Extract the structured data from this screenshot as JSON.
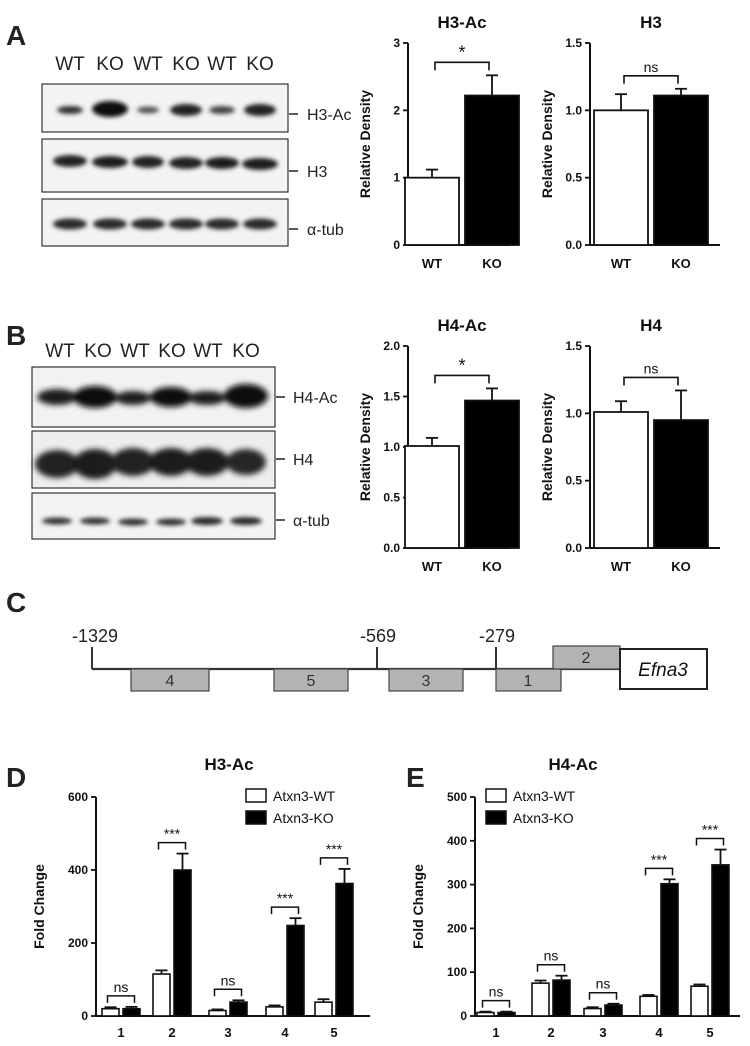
{
  "panel_letters": {
    "A": "A",
    "B": "B",
    "C": "C",
    "D": "D",
    "E": "E"
  },
  "blots": {
    "A": {
      "lanes": [
        "WT",
        "KO",
        "WT",
        "KO",
        "WT",
        "KO"
      ],
      "labels": [
        "H3-Ac",
        "H3",
        "α-tub"
      ]
    },
    "B": {
      "lanes": [
        "WT",
        "KO",
        "WT",
        "KO",
        "WT",
        "KO"
      ],
      "labels": [
        "H4-Ac",
        "H4",
        "α-tub"
      ]
    }
  },
  "promoter": {
    "positions": [
      "-1329",
      "-569",
      "-279"
    ],
    "regions": [
      "4",
      "5",
      "3",
      "1",
      "2"
    ],
    "gene": "Efna3"
  },
  "chart_data": [
    {
      "id": "A1",
      "type": "bar",
      "title": "H3-Ac",
      "ylabel": "Relative Density",
      "xlabel": "",
      "categories": [
        "WT",
        "KO"
      ],
      "values": [
        1.0,
        2.22
      ],
      "errors": [
        0.12,
        0.3
      ],
      "ylim": [
        0,
        3
      ],
      "yticks": [
        "0",
        "1",
        "2",
        "3"
      ],
      "colors": [
        "#ffffff",
        "#000000"
      ],
      "significance": "*"
    },
    {
      "id": "A2",
      "type": "bar",
      "title": "H3",
      "ylabel": "Relative Density",
      "xlabel": "",
      "categories": [
        "WT",
        "KO"
      ],
      "values": [
        1.0,
        1.11
      ],
      "errors": [
        0.12,
        0.05
      ],
      "ylim": [
        0,
        1.5
      ],
      "yticks": [
        "0.0",
        "0.5",
        "1.0",
        "1.5"
      ],
      "colors": [
        "#ffffff",
        "#000000"
      ],
      "significance": "ns"
    },
    {
      "id": "B1",
      "type": "bar",
      "title": "H4-Ac",
      "ylabel": "Relative Density",
      "xlabel": "",
      "categories": [
        "WT",
        "KO"
      ],
      "values": [
        1.01,
        1.46
      ],
      "errors": [
        0.08,
        0.12
      ],
      "ylim": [
        0,
        2.0
      ],
      "yticks": [
        "0.0",
        "0.5",
        "1.0",
        "1.5",
        "2.0"
      ],
      "colors": [
        "#ffffff",
        "#000000"
      ],
      "significance": "*"
    },
    {
      "id": "B2",
      "type": "bar",
      "title": "H4",
      "ylabel": "Relative Density",
      "xlabel": "",
      "categories": [
        "WT",
        "KO"
      ],
      "values": [
        1.01,
        0.95
      ],
      "errors": [
        0.08,
        0.22
      ],
      "ylim": [
        0,
        1.5
      ],
      "yticks": [
        "0.0",
        "0.5",
        "1.0",
        "1.5"
      ],
      "colors": [
        "#ffffff",
        "#000000"
      ],
      "significance": "ns"
    },
    {
      "id": "D",
      "type": "bar",
      "title": "H3-Ac",
      "ylabel": "Fold Change",
      "xlabel": "",
      "categories": [
        "1",
        "2",
        "3",
        "4",
        "5"
      ],
      "ylim": [
        0,
        600
      ],
      "yticks": [
        "0",
        "200",
        "400",
        "600"
      ],
      "series": [
        {
          "name": "Atxn3-WT",
          "color": "#ffffff",
          "values": [
            20,
            115,
            15,
            25,
            38
          ],
          "errors": [
            4,
            10,
            3,
            4,
            8
          ]
        },
        {
          "name": "Atxn3-KO",
          "color": "#000000",
          "values": [
            20,
            400,
            38,
            248,
            363
          ],
          "errors": [
            5,
            45,
            5,
            20,
            40
          ]
        }
      ],
      "significance": [
        "ns",
        "***",
        "ns",
        "***",
        "***"
      ],
      "legend": "top-right"
    },
    {
      "id": "E",
      "type": "bar",
      "title": "H4-Ac",
      "ylabel": "Fold Change",
      "xlabel": "",
      "categories": [
        "1",
        "2",
        "3",
        "4",
        "5"
      ],
      "ylim": [
        0,
        500
      ],
      "yticks": [
        "0",
        "100",
        "200",
        "300",
        "400",
        "500"
      ],
      "series": [
        {
          "name": "Atxn3-WT",
          "color": "#ffffff",
          "values": [
            8,
            75,
            17,
            45,
            68
          ],
          "errors": [
            2,
            6,
            3,
            3,
            4
          ]
        },
        {
          "name": "Atxn3-KO",
          "color": "#000000",
          "values": [
            8,
            82,
            25,
            302,
            345
          ],
          "errors": [
            2,
            10,
            3,
            10,
            35
          ]
        }
      ],
      "significance": [
        "ns",
        "ns",
        "ns",
        "***",
        "***"
      ],
      "legend": "top-left"
    }
  ]
}
